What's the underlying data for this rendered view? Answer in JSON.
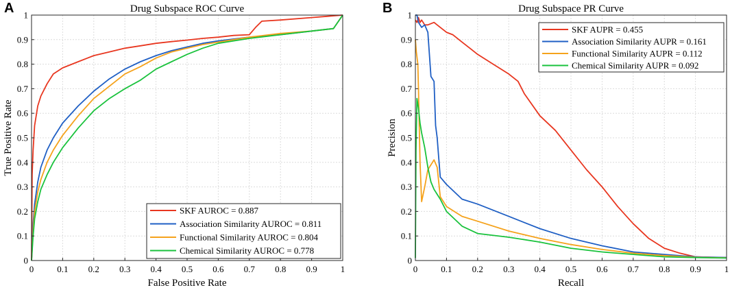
{
  "panels": [
    {
      "letter": "A"
    },
    {
      "letter": "B"
    }
  ],
  "chart_data": [
    {
      "type": "line",
      "title": "Drug Subspace ROC Curve",
      "xlabel": "False Positive Rate",
      "ylabel": "True Positive Rate",
      "xlim": [
        0,
        1
      ],
      "ylim": [
        0,
        1
      ],
      "xticks": [
        "0",
        "0.1",
        "0.2",
        "0.3",
        "0.4",
        "0.5",
        "0.6",
        "0.7",
        "0.8",
        "0.9",
        "1"
      ],
      "yticks": [
        "0",
        "0.1",
        "0.2",
        "0.3",
        "0.4",
        "0.5",
        "0.6",
        "0.7",
        "0.8",
        "0.9",
        "1"
      ],
      "grid": true,
      "legend_position": "bottom-right",
      "series": [
        {
          "name": "SKF AUROC = 0.887",
          "color": "#e8361f",
          "x": [
            0,
            0.002,
            0.005,
            0.01,
            0.02,
            0.03,
            0.05,
            0.07,
            0.1,
            0.15,
            0.2,
            0.25,
            0.3,
            0.35,
            0.4,
            0.45,
            0.5,
            0.55,
            0.6,
            0.65,
            0.7,
            0.72,
            0.74,
            0.8,
            0.9,
            0.95,
            1.0
          ],
          "y": [
            0,
            0.35,
            0.45,
            0.55,
            0.63,
            0.67,
            0.72,
            0.76,
            0.785,
            0.81,
            0.835,
            0.85,
            0.865,
            0.875,
            0.885,
            0.892,
            0.898,
            0.905,
            0.91,
            0.917,
            0.92,
            0.95,
            0.975,
            0.98,
            0.99,
            0.995,
            1.0
          ]
        },
        {
          "name": "Association Similarity AUROC = 0.811",
          "color": "#1f5fc4",
          "x": [
            0,
            0.005,
            0.01,
            0.02,
            0.03,
            0.05,
            0.07,
            0.1,
            0.15,
            0.2,
            0.25,
            0.3,
            0.35,
            0.4,
            0.45,
            0.5,
            0.55,
            0.6,
            0.7,
            0.8,
            0.9,
            0.97,
            1.0
          ],
          "y": [
            0,
            0.15,
            0.23,
            0.32,
            0.38,
            0.45,
            0.5,
            0.56,
            0.63,
            0.69,
            0.74,
            0.78,
            0.81,
            0.835,
            0.855,
            0.87,
            0.885,
            0.895,
            0.91,
            0.92,
            0.935,
            0.945,
            1.0
          ]
        },
        {
          "name": "Functional Similarity AUROC = 0.804",
          "color": "#f5a21b",
          "x": [
            0,
            0.005,
            0.01,
            0.02,
            0.03,
            0.05,
            0.07,
            0.1,
            0.15,
            0.2,
            0.25,
            0.3,
            0.35,
            0.4,
            0.45,
            0.5,
            0.55,
            0.6,
            0.7,
            0.8,
            0.9,
            0.97,
            1.0
          ],
          "y": [
            0,
            0.12,
            0.2,
            0.28,
            0.33,
            0.4,
            0.45,
            0.51,
            0.59,
            0.66,
            0.71,
            0.76,
            0.79,
            0.825,
            0.85,
            0.865,
            0.88,
            0.89,
            0.91,
            0.925,
            0.935,
            0.945,
            1.0
          ]
        },
        {
          "name": "Chemical Similarity AUROC = 0.778",
          "color": "#19c23c",
          "x": [
            0,
            0.005,
            0.01,
            0.02,
            0.03,
            0.05,
            0.07,
            0.1,
            0.15,
            0.2,
            0.25,
            0.3,
            0.35,
            0.4,
            0.45,
            0.5,
            0.55,
            0.6,
            0.7,
            0.8,
            0.9,
            0.97,
            1.0
          ],
          "y": [
            0,
            0.1,
            0.17,
            0.24,
            0.29,
            0.35,
            0.4,
            0.46,
            0.54,
            0.61,
            0.66,
            0.7,
            0.735,
            0.78,
            0.81,
            0.84,
            0.865,
            0.885,
            0.905,
            0.92,
            0.935,
            0.945,
            1.0
          ]
        }
      ]
    },
    {
      "type": "line",
      "title": "Drug Subspace PR Curve",
      "xlabel": "Recall",
      "ylabel": "Precision",
      "xlim": [
        0,
        1
      ],
      "ylim": [
        0,
        1
      ],
      "xticks": [
        "0",
        "0.1",
        "0.2",
        "0.3",
        "0.4",
        "0.5",
        "0.6",
        "0.7",
        "0.8",
        "0.9",
        "1"
      ],
      "yticks": [
        "0",
        "0.1",
        "0.2",
        "0.3",
        "0.4",
        "0.5",
        "0.6",
        "0.7",
        "0.8",
        "0.9",
        "1"
      ],
      "grid": true,
      "legend_position": "top-right",
      "series": [
        {
          "name": "SKF AUPR = 0.455",
          "color": "#e8361f",
          "x": [
            0,
            0.005,
            0.01,
            0.015,
            0.02,
            0.03,
            0.04,
            0.06,
            0.08,
            0.1,
            0.12,
            0.15,
            0.18,
            0.2,
            0.25,
            0.3,
            0.33,
            0.35,
            0.4,
            0.45,
            0.5,
            0.55,
            0.6,
            0.65,
            0.7,
            0.75,
            0.8,
            0.85,
            0.9,
            0.95,
            1.0
          ],
          "y": [
            0.98,
            0.97,
            0.99,
            0.97,
            0.98,
            0.96,
            0.96,
            0.97,
            0.95,
            0.93,
            0.92,
            0.89,
            0.86,
            0.84,
            0.8,
            0.76,
            0.73,
            0.68,
            0.59,
            0.53,
            0.45,
            0.37,
            0.3,
            0.22,
            0.15,
            0.09,
            0.05,
            0.03,
            0.015,
            0.013,
            0.012
          ]
        },
        {
          "name": "Association Similarity AUPR = 0.161",
          "color": "#1f5fc4",
          "x": [
            0,
            0.005,
            0.01,
            0.02,
            0.03,
            0.04,
            0.05,
            0.06,
            0.065,
            0.07,
            0.075,
            0.08,
            0.1,
            0.15,
            0.2,
            0.3,
            0.4,
            0.5,
            0.6,
            0.7,
            0.8,
            0.9,
            1.0
          ],
          "y": [
            1.0,
            1.0,
            0.97,
            0.95,
            0.96,
            0.93,
            0.75,
            0.73,
            0.55,
            0.5,
            0.42,
            0.34,
            0.31,
            0.25,
            0.23,
            0.18,
            0.13,
            0.09,
            0.06,
            0.035,
            0.025,
            0.015,
            0.012
          ]
        },
        {
          "name": "Functional Similarity AUPR = 0.112",
          "color": "#f5a21b",
          "x": [
            0,
            0.003,
            0.008,
            0.01,
            0.015,
            0.02,
            0.03,
            0.04,
            0.05,
            0.06,
            0.07,
            0.08,
            0.1,
            0.15,
            0.2,
            0.3,
            0.4,
            0.5,
            0.6,
            0.7,
            0.8,
            0.9,
            1.0
          ],
          "y": [
            0.9,
            0.85,
            0.8,
            0.7,
            0.4,
            0.24,
            0.3,
            0.37,
            0.39,
            0.41,
            0.38,
            0.26,
            0.22,
            0.18,
            0.16,
            0.12,
            0.09,
            0.065,
            0.045,
            0.03,
            0.02,
            0.013,
            0.011
          ]
        },
        {
          "name": "Chemical Similarity AUPR = 0.092",
          "color": "#19c23c",
          "x": [
            0,
            0.002,
            0.005,
            0.01,
            0.015,
            0.02,
            0.03,
            0.04,
            0.05,
            0.06,
            0.08,
            0.1,
            0.15,
            0.2,
            0.3,
            0.4,
            0.5,
            0.6,
            0.7,
            0.8,
            0.9,
            1.0
          ],
          "y": [
            0.01,
            0.45,
            0.66,
            0.62,
            0.56,
            0.52,
            0.46,
            0.38,
            0.32,
            0.29,
            0.25,
            0.2,
            0.14,
            0.11,
            0.095,
            0.075,
            0.05,
            0.035,
            0.025,
            0.015,
            0.012,
            0.01
          ]
        }
      ]
    }
  ]
}
